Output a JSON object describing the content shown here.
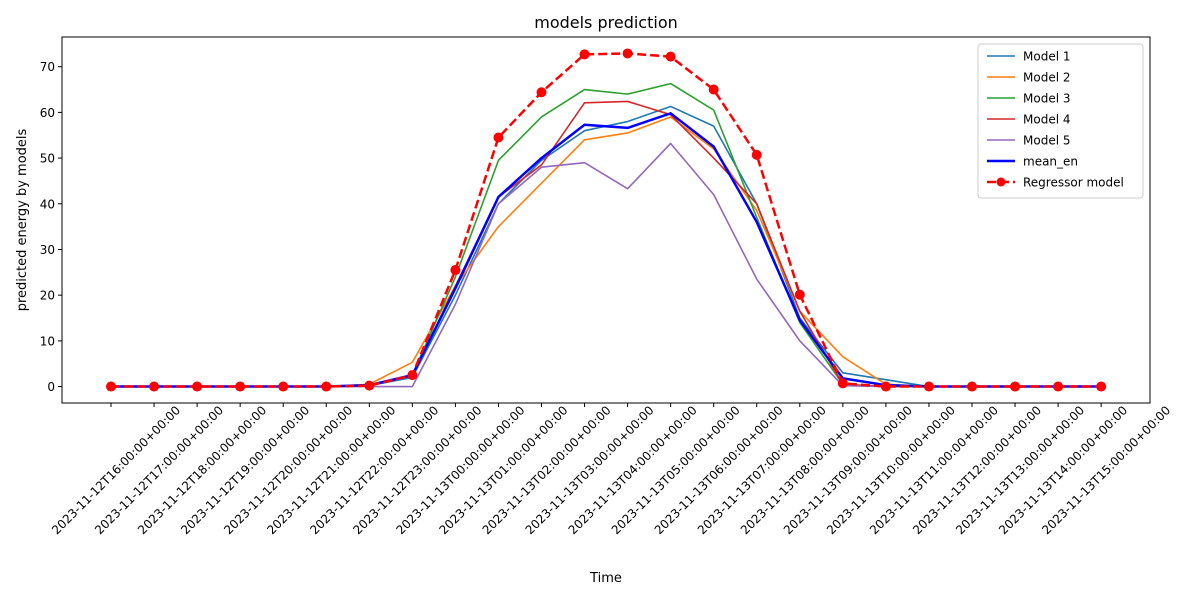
{
  "chart_data": {
    "type": "line",
    "title": "models prediction",
    "xlabel": "Time",
    "ylabel": "predicted energy by models",
    "x": [
      "2023-11-12T16:00:00+00:00",
      "2023-11-12T17:00:00+00:00",
      "2023-11-12T18:00:00+00:00",
      "2023-11-12T19:00:00+00:00",
      "2023-11-12T20:00:00+00:00",
      "2023-11-12T21:00:00+00:00",
      "2023-11-12T22:00:00+00:00",
      "2023-11-12T23:00:00+00:00",
      "2023-11-13T00:00:00+00:00",
      "2023-11-13T01:00:00+00:00",
      "2023-11-13T02:00:00+00:00",
      "2023-11-13T03:00:00+00:00",
      "2023-11-13T04:00:00+00:00",
      "2023-11-13T05:00:00+00:00",
      "2023-11-13T06:00:00+00:00",
      "2023-11-13T07:00:00+00:00",
      "2023-11-13T08:00:00+00:00",
      "2023-11-13T09:00:00+00:00",
      "2023-11-13T10:00:00+00:00",
      "2023-11-13T11:00:00+00:00",
      "2023-11-13T12:00:00+00:00",
      "2023-11-13T13:00:00+00:00",
      "2023-11-13T14:00:00+00:00",
      "2023-11-13T15:00:00+00:00"
    ],
    "ylim": [
      -3.6,
      76.5
    ],
    "yticks": [
      0,
      10,
      20,
      30,
      40,
      50,
      60,
      70
    ],
    "grid": false,
    "legend_position": "top-right",
    "series": [
      {
        "name": "Model 1",
        "color": "#1f77b4",
        "style": "solid",
        "marker": "none",
        "values": [
          0,
          0,
          0,
          0,
          0,
          0,
          0.2,
          2.0,
          20.0,
          40.0,
          49.5,
          56.0,
          58.0,
          61.3,
          57.0,
          40.0,
          15.0,
          3.0,
          1.5,
          0,
          0,
          0,
          0,
          0
        ]
      },
      {
        "name": "Model 2",
        "color": "#ff7f0e",
        "style": "solid",
        "marker": "none",
        "values": [
          0,
          0,
          0,
          0,
          0,
          0,
          0.5,
          5.3,
          22.0,
          35.0,
          44.5,
          54.0,
          55.5,
          59.0,
          52.0,
          38.5,
          16.5,
          6.5,
          0.5,
          0,
          0,
          0,
          0,
          0
        ]
      },
      {
        "name": "Model 3",
        "color": "#2ca02c",
        "style": "solid",
        "marker": "none",
        "values": [
          0,
          0,
          0,
          0,
          0,
          0,
          0.3,
          2.5,
          24.0,
          49.5,
          59.0,
          65.0,
          64.0,
          66.3,
          60.5,
          37.0,
          14.0,
          0.5,
          0,
          0,
          0,
          0,
          0,
          0
        ]
      },
      {
        "name": "Model 4",
        "color": "#d62728",
        "style": "solid",
        "marker": "none",
        "values": [
          0,
          0,
          0,
          0,
          0,
          0,
          0.3,
          2.3,
          22.0,
          41.5,
          48.5,
          62.1,
          62.4,
          59.5,
          50.0,
          40.0,
          16.5,
          0.5,
          0,
          0,
          0,
          0,
          0,
          0
        ]
      },
      {
        "name": "Model 5",
        "color": "#9467bd",
        "style": "solid",
        "marker": "none",
        "values": [
          0,
          0,
          0,
          0,
          0,
          0,
          0,
          0,
          18.0,
          40.0,
          48.0,
          49.0,
          43.3,
          53.2,
          42.0,
          23.5,
          10.0,
          0.2,
          0,
          0,
          0,
          0,
          0,
          0
        ]
      },
      {
        "name": "mean_en",
        "color": "#0000ff",
        "style": "solid-thick",
        "marker": "none",
        "values": [
          0,
          0,
          0,
          0,
          0,
          0,
          0.3,
          2.5,
          21.5,
          41.5,
          50.0,
          57.3,
          56.6,
          59.8,
          52.5,
          36.0,
          14.5,
          1.8,
          0.3,
          0,
          0,
          0,
          0,
          0
        ]
      },
      {
        "name": "Regressor model",
        "color": "#ff0000",
        "style": "dashed",
        "marker": "circle",
        "values": [
          0,
          0,
          0,
          0,
          0,
          0,
          0.2,
          2.5,
          25.5,
          54.5,
          64.4,
          72.7,
          72.9,
          72.2,
          65.0,
          50.7,
          20.1,
          0.7,
          0,
          0,
          0,
          0,
          0,
          0
        ]
      }
    ]
  }
}
